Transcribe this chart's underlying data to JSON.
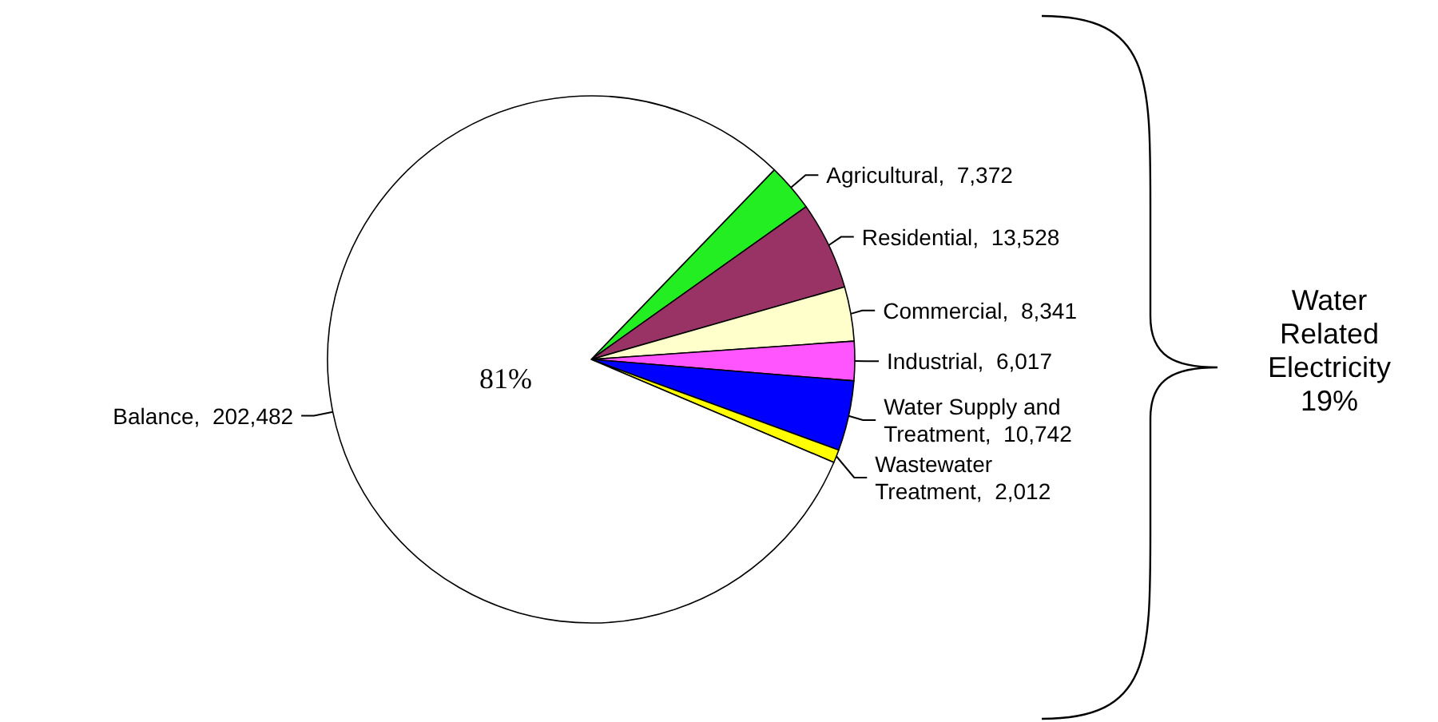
{
  "chart_data": {
    "type": "pie",
    "categories": [
      "Agricultural",
      "Residential",
      "Commercial",
      "Industrial",
      "Water Supply and Treatment",
      "Wastewater Treatment",
      "Balance"
    ],
    "values": [
      7372,
      13528,
      8341,
      6017,
      10742,
      2012,
      202482
    ],
    "colors": [
      "#22ee22",
      "#993366",
      "#ffffcc",
      "#ff55ff",
      "#0000ff",
      "#ffff00",
      "#ffffff"
    ],
    "value_labels": [
      "7,372",
      "13,528",
      "8,341",
      "6,017",
      "10,742",
      "2,012",
      "202,482"
    ],
    "annotations": [
      "81%",
      "Water Related Electricity 19%"
    ]
  }
}
